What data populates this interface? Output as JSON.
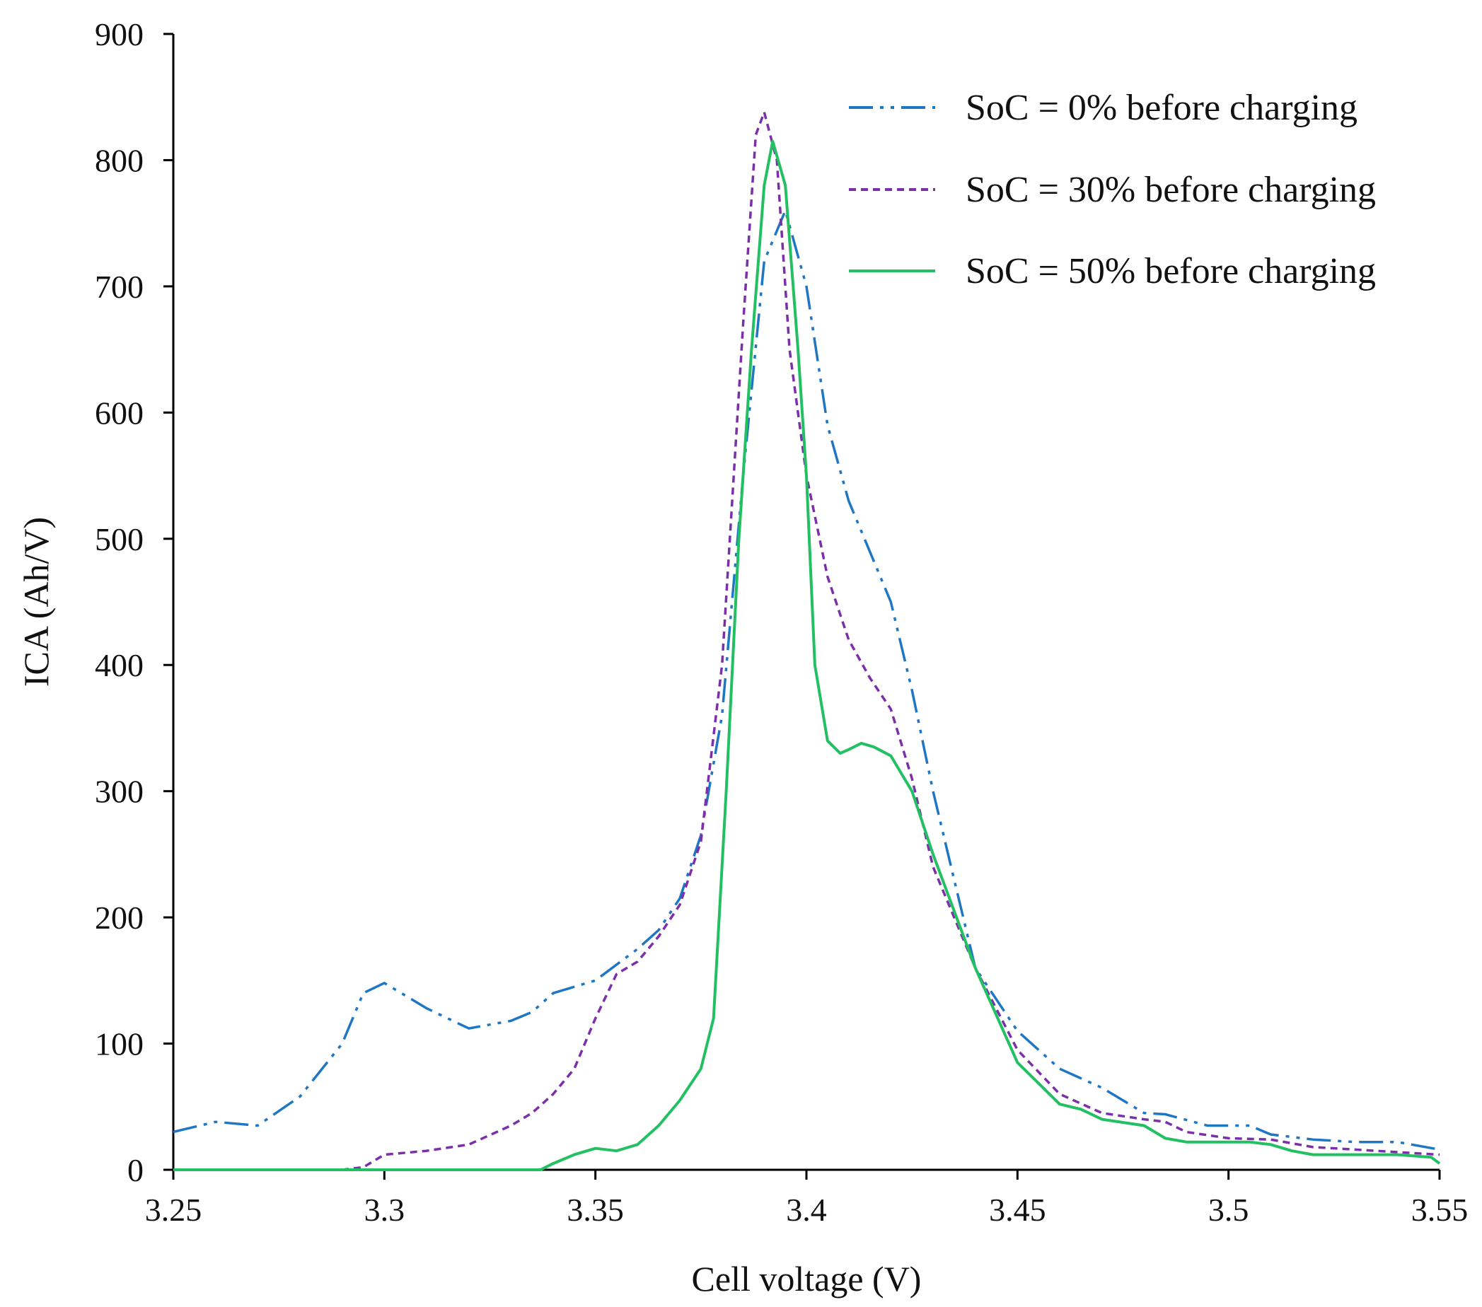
{
  "chart_data": {
    "type": "line",
    "title": "",
    "xlabel": "Cell voltage (V)",
    "ylabel": "ICA (Ah/V)",
    "xlim": [
      3.25,
      3.55
    ],
    "ylim": [
      0,
      900
    ],
    "xticks": [
      "3.25",
      "3.3",
      "3.35",
      "3.4",
      "3.45",
      "3.5",
      "3.55"
    ],
    "yticks": [
      "0",
      "100",
      "200",
      "300",
      "400",
      "500",
      "600",
      "700",
      "800",
      "900"
    ],
    "grid": false,
    "legend_position": "top-right",
    "series": [
      {
        "name": "SoC = 0% before charging",
        "color": "#1f77c4",
        "dash": "dash-dot-dot",
        "points": [
          [
            3.25,
            30
          ],
          [
            3.26,
            38
          ],
          [
            3.27,
            35
          ],
          [
            3.28,
            58
          ],
          [
            3.29,
            100
          ],
          [
            3.295,
            140
          ],
          [
            3.3,
            148
          ],
          [
            3.305,
            138
          ],
          [
            3.31,
            128
          ],
          [
            3.32,
            112
          ],
          [
            3.33,
            118
          ],
          [
            3.335,
            125
          ],
          [
            3.34,
            140
          ],
          [
            3.35,
            150
          ],
          [
            3.36,
            175
          ],
          [
            3.365,
            190
          ],
          [
            3.37,
            215
          ],
          [
            3.375,
            265
          ],
          [
            3.38,
            360
          ],
          [
            3.385,
            550
          ],
          [
            3.39,
            720
          ],
          [
            3.395,
            760
          ],
          [
            3.4,
            700
          ],
          [
            3.405,
            590
          ],
          [
            3.41,
            530
          ],
          [
            3.415,
            490
          ],
          [
            3.42,
            450
          ],
          [
            3.425,
            380
          ],
          [
            3.43,
            300
          ],
          [
            3.435,
            230
          ],
          [
            3.44,
            160
          ],
          [
            3.45,
            110
          ],
          [
            3.46,
            80
          ],
          [
            3.47,
            65
          ],
          [
            3.48,
            45
          ],
          [
            3.485,
            44
          ],
          [
            3.495,
            35
          ],
          [
            3.505,
            35
          ],
          [
            3.51,
            28
          ],
          [
            3.52,
            24
          ],
          [
            3.53,
            22
          ],
          [
            3.54,
            22
          ],
          [
            3.55,
            16
          ]
        ]
      },
      {
        "name": "SoC = 30% before charging",
        "color": "#7b2fa8",
        "dash": "dashed",
        "points": [
          [
            3.25,
            0
          ],
          [
            3.29,
            0
          ],
          [
            3.295,
            2
          ],
          [
            3.3,
            12
          ],
          [
            3.31,
            15
          ],
          [
            3.32,
            20
          ],
          [
            3.33,
            35
          ],
          [
            3.335,
            45
          ],
          [
            3.34,
            60
          ],
          [
            3.345,
            80
          ],
          [
            3.35,
            120
          ],
          [
            3.355,
            155
          ],
          [
            3.36,
            165
          ],
          [
            3.365,
            185
          ],
          [
            3.37,
            210
          ],
          [
            3.375,
            260
          ],
          [
            3.38,
            400
          ],
          [
            3.385,
            670
          ],
          [
            3.388,
            820
          ],
          [
            3.39,
            838
          ],
          [
            3.393,
            800
          ],
          [
            3.396,
            650
          ],
          [
            3.4,
            550
          ],
          [
            3.405,
            470
          ],
          [
            3.41,
            420
          ],
          [
            3.415,
            390
          ],
          [
            3.42,
            365
          ],
          [
            3.425,
            310
          ],
          [
            3.43,
            240
          ],
          [
            3.44,
            160
          ],
          [
            3.45,
            95
          ],
          [
            3.46,
            60
          ],
          [
            3.47,
            45
          ],
          [
            3.48,
            40
          ],
          [
            3.485,
            38
          ],
          [
            3.49,
            30
          ],
          [
            3.5,
            25
          ],
          [
            3.51,
            24
          ],
          [
            3.52,
            18
          ],
          [
            3.53,
            16
          ],
          [
            3.54,
            14
          ],
          [
            3.55,
            12
          ]
        ]
      },
      {
        "name": "SoC = 50% before charging",
        "color": "#22c063",
        "dash": "solid",
        "points": [
          [
            3.25,
            0
          ],
          [
            3.337,
            0
          ],
          [
            3.34,
            5
          ],
          [
            3.345,
            12
          ],
          [
            3.35,
            17
          ],
          [
            3.355,
            15
          ],
          [
            3.36,
            20
          ],
          [
            3.365,
            35
          ],
          [
            3.37,
            55
          ],
          [
            3.375,
            80
          ],
          [
            3.378,
            120
          ],
          [
            3.381,
            300
          ],
          [
            3.384,
            500
          ],
          [
            3.387,
            650
          ],
          [
            3.39,
            780
          ],
          [
            3.392,
            815
          ],
          [
            3.395,
            780
          ],
          [
            3.398,
            650
          ],
          [
            3.4,
            550
          ],
          [
            3.402,
            400
          ],
          [
            3.405,
            340
          ],
          [
            3.408,
            330
          ],
          [
            3.41,
            333
          ],
          [
            3.413,
            338
          ],
          [
            3.416,
            335
          ],
          [
            3.42,
            328
          ],
          [
            3.425,
            300
          ],
          [
            3.43,
            250
          ],
          [
            3.44,
            160
          ],
          [
            3.45,
            85
          ],
          [
            3.46,
            52
          ],
          [
            3.465,
            48
          ],
          [
            3.47,
            40
          ],
          [
            3.48,
            35
          ],
          [
            3.485,
            25
          ],
          [
            3.49,
            22
          ],
          [
            3.5,
            22
          ],
          [
            3.505,
            22
          ],
          [
            3.51,
            20
          ],
          [
            3.515,
            15
          ],
          [
            3.52,
            12
          ],
          [
            3.53,
            12
          ],
          [
            3.54,
            12
          ],
          [
            3.548,
            10
          ],
          [
            3.55,
            5
          ]
        ]
      }
    ]
  }
}
